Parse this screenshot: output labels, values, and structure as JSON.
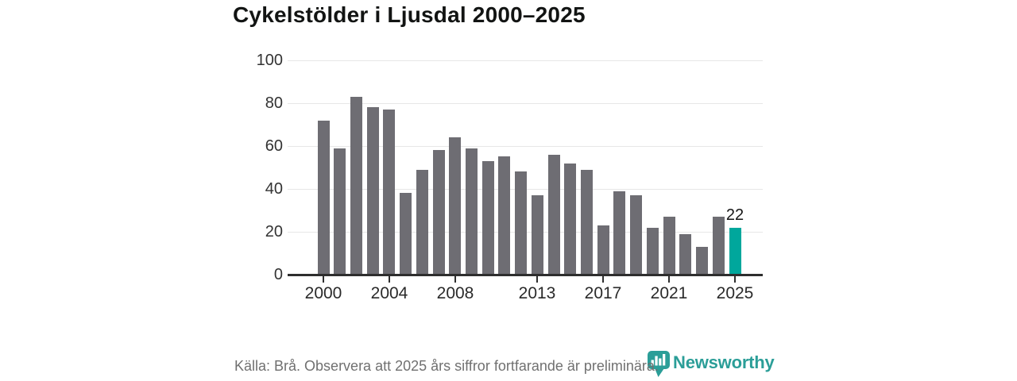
{
  "title": "Cykelstölder i Ljusdal 2000–2025",
  "chart_data": {
    "type": "bar",
    "title": "Cykelstölder i Ljusdal 2000–2025",
    "categories": [
      2000,
      2001,
      2002,
      2003,
      2004,
      2005,
      2006,
      2007,
      2008,
      2009,
      2010,
      2011,
      2012,
      2013,
      2014,
      2015,
      2016,
      2017,
      2018,
      2019,
      2020,
      2021,
      2022,
      2023,
      2024,
      2025
    ],
    "values": [
      72,
      59,
      83,
      78,
      77,
      38,
      49,
      58,
      64,
      59,
      53,
      55,
      48,
      37,
      56,
      52,
      49,
      23,
      39,
      37,
      22,
      27,
      19,
      13,
      27,
      22
    ],
    "xlabel": "",
    "ylabel": "",
    "ylim": [
      0,
      100
    ],
    "yticks": [
      0,
      20,
      40,
      60,
      80,
      100
    ],
    "xticks": [
      2000,
      2004,
      2008,
      2013,
      2017,
      2021,
      2025
    ],
    "grid": true,
    "legend": "none",
    "bar_color": "#6e6d73",
    "highlight_category": 2025,
    "highlight_color": "#00a79c",
    "highlight_value_label": "22",
    "axis_color": "#2e2e2e",
    "gridline_color": "#e7e7e7"
  },
  "footer": {
    "source_text": "Källa: Brå. Observera att 2025 års siffror fortfarande är preliminära.",
    "brand_name": "Newsworthy",
    "brand_color": "#2b9e98",
    "brand_icon": "bar-chart-badge-icon"
  }
}
